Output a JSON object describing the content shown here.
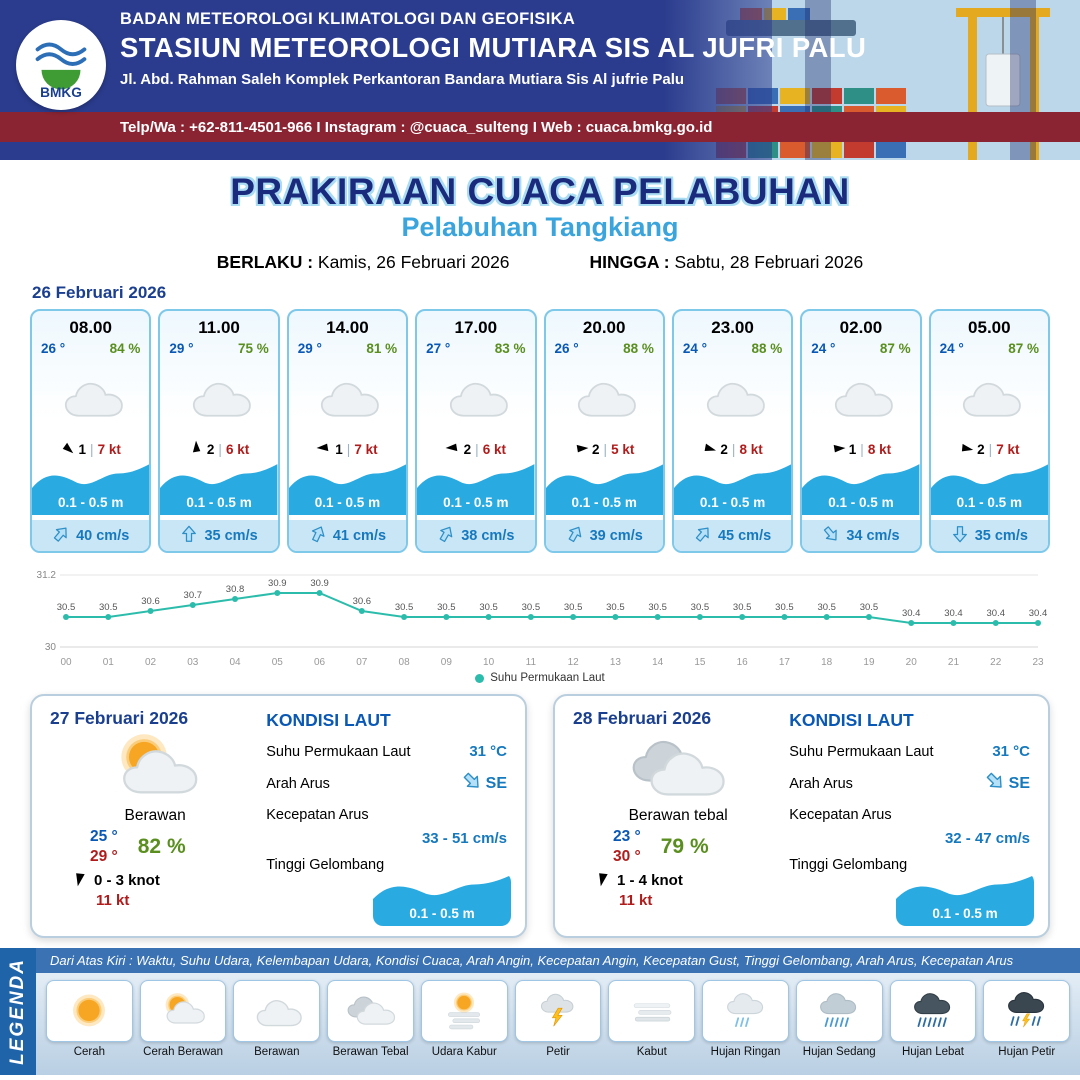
{
  "header": {
    "logo_text": "BMKG",
    "org_line1": "BADAN METEOROLOGI KLIMATOLOGI DAN GEOFISIKA",
    "org_line2": "STASIUN METEOROLOGI MUTIARA SIS AL JUFRI PALU",
    "address": "Jl. Abd. Rahman Saleh Komplek Perkantoran Bandara Mutiara Sis Al jufrie Palu",
    "contact": "Telp/Wa : +62-811-4501-966  I  Instagram : @cuaca_sulteng  I  Web : cuaca.bmkg.go.id"
  },
  "title": {
    "main": "PRAKIRAAN CUACA PELABUHAN",
    "sub": "Pelabuhan Tangkiang",
    "valid_label": "BERLAKU :",
    "valid_value": "Kamis, 26 Februari 2026",
    "until_label": "HINGGA :",
    "until_value": "Sabtu, 28 Februari 2026"
  },
  "forecast": {
    "date": "26 Februari 2026",
    "sep": "|",
    "cards": [
      {
        "time": "08.00",
        "temp": "26 °",
        "rh": "84 %",
        "icon": "berawan",
        "wind_rot": -90,
        "wind_val": "1",
        "wind_kt": "7 kt",
        "wave": "0.1 - 0.5 m",
        "cur_rot": 40,
        "current": "40 cm/s"
      },
      {
        "time": "11.00",
        "temp": "29 °",
        "rh": "75 %",
        "icon": "berawan",
        "wind_rot": 135,
        "wind_val": "2",
        "wind_kt": "6 kt",
        "wave": "0.1 - 0.5 m",
        "cur_rot": 0,
        "current": "35 cm/s"
      },
      {
        "time": "14.00",
        "temp": "29 °",
        "rh": "81 %",
        "icon": "berawan",
        "wind_rot": 45,
        "wind_val": "1",
        "wind_kt": "7 kt",
        "wave": "0.1 - 0.5 m",
        "cur_rot": 25,
        "current": "41 cm/s"
      },
      {
        "time": "17.00",
        "temp": "27 °",
        "rh": "83 %",
        "icon": "berawan",
        "wind_rot": 45,
        "wind_val": "2",
        "wind_kt": "6 kt",
        "wave": "0.1 - 0.5 m",
        "cur_rot": 30,
        "current": "38 cm/s"
      },
      {
        "time": "20.00",
        "temp": "26 °",
        "rh": "88 %",
        "icon": "berawan",
        "wind_rot": -135,
        "wind_val": "2",
        "wind_kt": "5 kt",
        "wave": "0.1 - 0.5 m",
        "cur_rot": 30,
        "current": "39 cm/s"
      },
      {
        "time": "23.00",
        "temp": "24 °",
        "rh": "88 %",
        "icon": "berawan",
        "wind_rot": -115,
        "wind_val": "2",
        "wind_kt": "8 kt",
        "wave": "0.1 - 0.5 m",
        "cur_rot": 40,
        "current": "45 cm/s"
      },
      {
        "time": "02.00",
        "temp": "24 °",
        "rh": "87 %",
        "icon": "berawan",
        "wind_rot": -135,
        "wind_val": "1",
        "wind_kt": "8 kt",
        "wave": "0.1 - 0.5 m",
        "cur_rot": 140,
        "current": "34 cm/s"
      },
      {
        "time": "05.00",
        "temp": "24 °",
        "rh": "87 %",
        "icon": "berawan",
        "wind_rot": -120,
        "wind_val": "2",
        "wind_kt": "7 kt",
        "wave": "0.1 - 0.5 m",
        "cur_rot": 180,
        "current": "35 cm/s"
      }
    ]
  },
  "chart_data": {
    "type": "line",
    "title": "",
    "xlabel": "",
    "ylabel": "",
    "x": [
      "00",
      "01",
      "02",
      "03",
      "04",
      "05",
      "06",
      "07",
      "08",
      "09",
      "10",
      "11",
      "12",
      "13",
      "14",
      "15",
      "16",
      "17",
      "18",
      "19",
      "20",
      "21",
      "22",
      "23"
    ],
    "series": [
      {
        "name": "Suhu Permukaan Laut",
        "values": [
          30.5,
          30.5,
          30.6,
          30.7,
          30.8,
          30.9,
          30.9,
          30.6,
          30.5,
          30.5,
          30.5,
          30.5,
          30.5,
          30.5,
          30.5,
          30.5,
          30.5,
          30.5,
          30.5,
          30.5,
          30.4,
          30.4,
          30.4,
          30.4
        ]
      }
    ],
    "ylim": [
      30,
      31.2
    ],
    "color": "#2cbcab",
    "grid": true,
    "legend_position": "bottom"
  },
  "days": {
    "labels": {
      "kondisi_laut": "KONDISI LAUT",
      "sst": "Suhu Permukaan Laut",
      "arah_arus": "Arah Arus",
      "kecepatan_arus": "Kecepatan Arus",
      "tinggi_gelombang": "Tinggi Gelombang"
    },
    "cards": [
      {
        "date": "27 Februari 2026",
        "icon": "cerah-berawan",
        "condition": "Berawan",
        "temp_min": "25 °",
        "temp_max": "29 °",
        "rh": "82 %",
        "wind_rot": -30,
        "wind": "0 - 3 knot",
        "gust": "11 kt",
        "sst": "31 °C",
        "cur_rot": 135,
        "current_dir": "SE",
        "current_speed": "33 - 51 cm/s",
        "wave": "0.1 - 0.5 m"
      },
      {
        "date": "28 Februari 2026",
        "icon": "berawan-tebal",
        "condition": "Berawan tebal",
        "temp_min": "23 °",
        "temp_max": "30 °",
        "rh": "79 %",
        "wind_rot": -30,
        "wind": "1 - 4 knot",
        "gust": "11 kt",
        "sst": "31 °C",
        "cur_rot": 135,
        "current_dir": "SE",
        "current_speed": "32 - 47 cm/s",
        "wave": "0.1 - 0.5 m"
      }
    ]
  },
  "legend": {
    "title": "LEGENDA",
    "note": "Dari Atas Kiri : Waktu, Suhu Udara, Kelembapan Udara, Kondisi Cuaca, Arah Angin, Kecepatan Angin, Kecepatan Gust, Tinggi Gelombang, Arah Arus, Kecepatan Arus",
    "items": [
      {
        "label": "Cerah",
        "icon": "cerah"
      },
      {
        "label": "Cerah Berawan",
        "icon": "cerah-berawan"
      },
      {
        "label": "Berawan",
        "icon": "berawan"
      },
      {
        "label": "Berawan Tebal",
        "icon": "berawan-tebal"
      },
      {
        "label": "Udara Kabur",
        "icon": "udara-kabur"
      },
      {
        "label": "Petir",
        "icon": "petir"
      },
      {
        "label": "Kabut",
        "icon": "kabut"
      },
      {
        "label": "Hujan Ringan",
        "icon": "hujan-ringan"
      },
      {
        "label": "Hujan Sedang",
        "icon": "hujan-sedang"
      },
      {
        "label": "Hujan Lebat",
        "icon": "hujan-lebat"
      },
      {
        "label": "Hujan Petir",
        "icon": "hujan-petir"
      }
    ]
  }
}
